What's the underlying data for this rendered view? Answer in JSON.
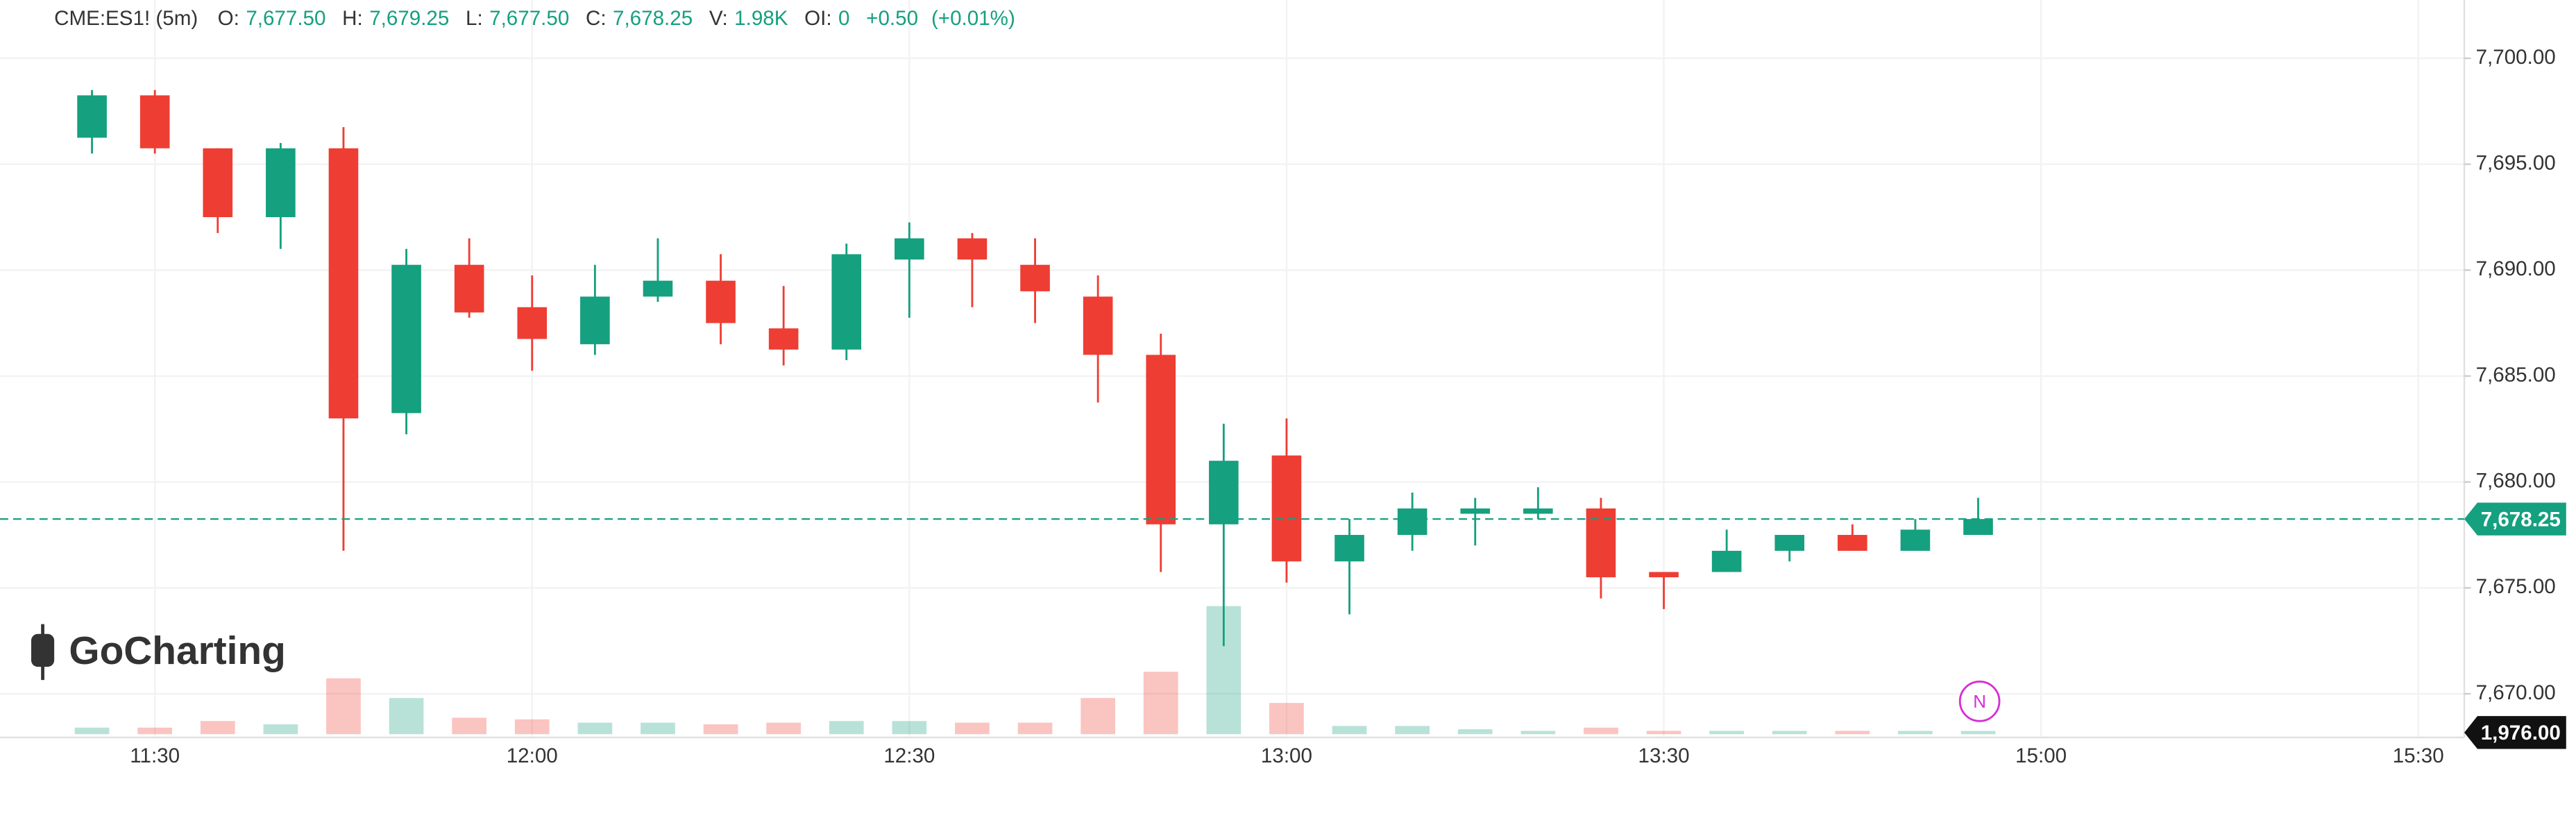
{
  "header": {
    "symbol": "CME:ES1! (5m)",
    "fields": [
      {
        "label": "O:",
        "value": "7,677.50"
      },
      {
        "label": "H:",
        "value": "7,679.25"
      },
      {
        "label": "L:",
        "value": "7,677.50"
      },
      {
        "label": "C:",
        "value": "7,678.25"
      },
      {
        "label": "V:",
        "value": "1.98K"
      },
      {
        "label": "OI:",
        "value": "0"
      }
    ],
    "change": "+0.50",
    "change_pct": "(+0.01%)"
  },
  "logo": "GoCharting",
  "marker": "N",
  "chart_data": {
    "type": "candlestick",
    "categories": [
      null,
      "11:30",
      null,
      null,
      null,
      null,
      null,
      "12:00",
      null,
      null,
      null,
      null,
      null,
      "12:30",
      null,
      null,
      null,
      null,
      null,
      "13:00",
      null,
      null,
      null,
      null,
      null,
      "13:30",
      null,
      null,
      null,
      null,
      null,
      "15:00",
      null,
      null,
      null,
      null,
      null,
      "15:30"
    ],
    "open": [
      7696.25,
      7698.25,
      7695.75,
      7692.5,
      7695.75,
      7683.25,
      7690.25,
      7688.25,
      7686.5,
      7688.75,
      7689.5,
      7687.25,
      7686.25,
      7690.5,
      7691.5,
      7690.25,
      7688.75,
      7686,
      7678,
      7681.25,
      7676.25,
      7677.5,
      7678.5,
      7678.5,
      7678.75,
      7675.75,
      7675.75,
      7676.75,
      7677.5,
      7676.75,
      7677.5,
      null,
      null,
      null,
      null,
      null,
      null,
      null
    ],
    "high": [
      7698.5,
      7698.5,
      7695.75,
      7696,
      7696.75,
      7691,
      7691.5,
      7689.75,
      7690.25,
      7691.5,
      7690.75,
      7689.25,
      7691.25,
      7692.25,
      7691.75,
      7691.5,
      7689.75,
      7687,
      7682.75,
      7683,
      7678.25,
      7679.5,
      7679.25,
      7679.75,
      7679.25,
      7675.75,
      7677.75,
      7677.5,
      7678,
      7678.25,
      7679.25,
      null,
      null,
      null,
      null,
      null,
      null,
      null
    ],
    "low": [
      7695.5,
      7695.5,
      7691.75,
      7691,
      7676.75,
      7682.25,
      7687.75,
      7685.25,
      7686,
      7688.5,
      7686.5,
      7685.5,
      7685.75,
      7687.75,
      7688.25,
      7687.5,
      7683.75,
      7675.75,
      7672.25,
      7675.25,
      7673.75,
      7676.75,
      7677,
      7678.25,
      7674.5,
      7674,
      7675.75,
      7676.25,
      7676.75,
      7676.75,
      7677.5,
      null,
      null,
      null,
      null,
      null,
      null,
      null
    ],
    "close": [
      7698.25,
      7695.75,
      7692.5,
      7695.75,
      7683,
      7690.25,
      7688,
      7686.75,
      7688.75,
      7689.5,
      7687.5,
      7686.25,
      7690.75,
      7691.5,
      7690.5,
      7689,
      7686,
      7678,
      7681,
      7676.25,
      7677.5,
      7678.75,
      7678.75,
      7678.75,
      7675.5,
      7675.5,
      7676.75,
      7677.5,
      7676.75,
      7677.75,
      7678.25,
      null,
      null,
      null,
      null,
      null,
      null,
      null
    ],
    "volume": [
      4000,
      4000,
      8000,
      6000,
      34000,
      22000,
      10000,
      9000,
      7000,
      7000,
      6000,
      7000,
      8000,
      8000,
      7000,
      7000,
      22000,
      38000,
      78000,
      19000,
      5000,
      5000,
      3000,
      2000,
      4000,
      2000,
      2000,
      2000,
      2000,
      2000,
      1976,
      null,
      null,
      null,
      null,
      null,
      null,
      null
    ],
    "volume_label": "1,976.00",
    "up_color": "#15a07f",
    "down_color": "#ee3d33",
    "last_price": {
      "value": 7678.25,
      "label": "7,678.25"
    },
    "ylim": [
      7668.25,
      7702.75
    ],
    "yticks": [
      {
        "value": 7670,
        "label": "7,670.00"
      },
      {
        "value": 7675,
        "label": "7,675.00"
      },
      {
        "value": 7680,
        "label": "7,680.00"
      },
      {
        "value": 7685,
        "label": "7,685.00"
      },
      {
        "value": 7690,
        "label": "7,690.00"
      },
      {
        "value": 7695,
        "label": "7,695.00"
      },
      {
        "value": 7700,
        "label": "7,700.00"
      }
    ],
    "grid": true
  }
}
